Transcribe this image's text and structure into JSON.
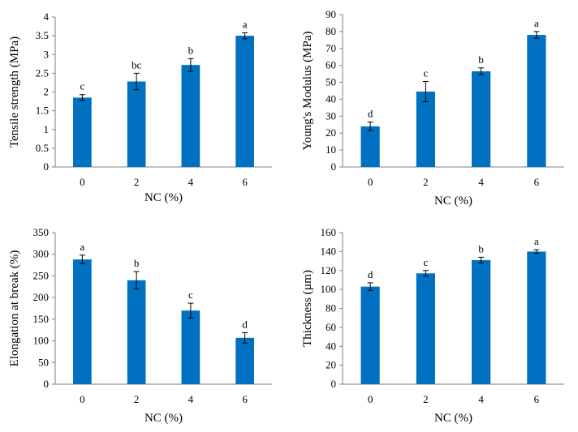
{
  "colors": {
    "bar": "#0070C0",
    "axis": "#7f7f7f",
    "error": "#000000"
  },
  "chart_data": [
    {
      "type": "bar",
      "title": "",
      "xlabel": "NC (%)",
      "ylabel": "Tensile strength (MPa)",
      "categories": [
        "0",
        "2",
        "4",
        "6"
      ],
      "values": [
        1.85,
        2.28,
        2.72,
        3.5
      ],
      "errors": [
        0.08,
        0.22,
        0.17,
        0.08
      ],
      "significance": [
        "c",
        "bc",
        "b",
        "a"
      ],
      "ylim": [
        0,
        4
      ],
      "yticks": [
        0,
        0.5,
        1,
        1.5,
        2,
        2.5,
        3,
        3.5,
        4
      ],
      "ytick_labels": [
        "0",
        "0.5",
        "1",
        "1.5",
        "2",
        "2.5",
        "3",
        "3.5",
        "4"
      ],
      "grid": false,
      "legend": "none"
    },
    {
      "type": "bar",
      "title": "",
      "xlabel": "NC (%)",
      "ylabel": "Young's Modulus (MPa)",
      "categories": [
        "0",
        "2",
        "4",
        "6"
      ],
      "values": [
        24,
        44.5,
        56.5,
        78
      ],
      "errors": [
        2.5,
        6,
        2,
        2
      ],
      "significance": [
        "d",
        "c",
        "b",
        "a"
      ],
      "ylim": [
        0,
        90
      ],
      "yticks": [
        0,
        10,
        20,
        30,
        40,
        50,
        60,
        70,
        80,
        90
      ],
      "ytick_labels": [
        "0",
        "10",
        "20",
        "30",
        "40",
        "50",
        "60",
        "70",
        "80",
        "90"
      ],
      "grid": false,
      "legend": "none"
    },
    {
      "type": "bar",
      "title": "",
      "xlabel": "NC (%)",
      "ylabel": "Elongation at break (%)",
      "categories": [
        "0",
        "2",
        "4",
        "6"
      ],
      "values": [
        288,
        240,
        170,
        107
      ],
      "errors": [
        10,
        20,
        17,
        12
      ],
      "significance": [
        "a",
        "b",
        "c",
        "d"
      ],
      "ylim": [
        0,
        350
      ],
      "yticks": [
        0,
        50,
        100,
        150,
        200,
        250,
        300,
        350
      ],
      "ytick_labels": [
        "0",
        "50",
        "100",
        "150",
        "200",
        "250",
        "300",
        "350"
      ],
      "grid": false,
      "legend": "none"
    },
    {
      "type": "bar",
      "title": "",
      "xlabel": "NC (%)",
      "ylabel": "Thickness (µm)",
      "categories": [
        "0",
        "2",
        "4",
        "6"
      ],
      "values": [
        103,
        117,
        131,
        140
      ],
      "errors": [
        4,
        3,
        3,
        2
      ],
      "significance": [
        "d",
        "c",
        "b",
        "a"
      ],
      "ylim": [
        0,
        160
      ],
      "yticks": [
        0,
        20,
        40,
        60,
        80,
        100,
        120,
        140,
        160
      ],
      "ytick_labels": [
        "0",
        "20",
        "40",
        "60",
        "80",
        "100",
        "120",
        "140",
        "160"
      ],
      "grid": false,
      "legend": "none"
    }
  ]
}
